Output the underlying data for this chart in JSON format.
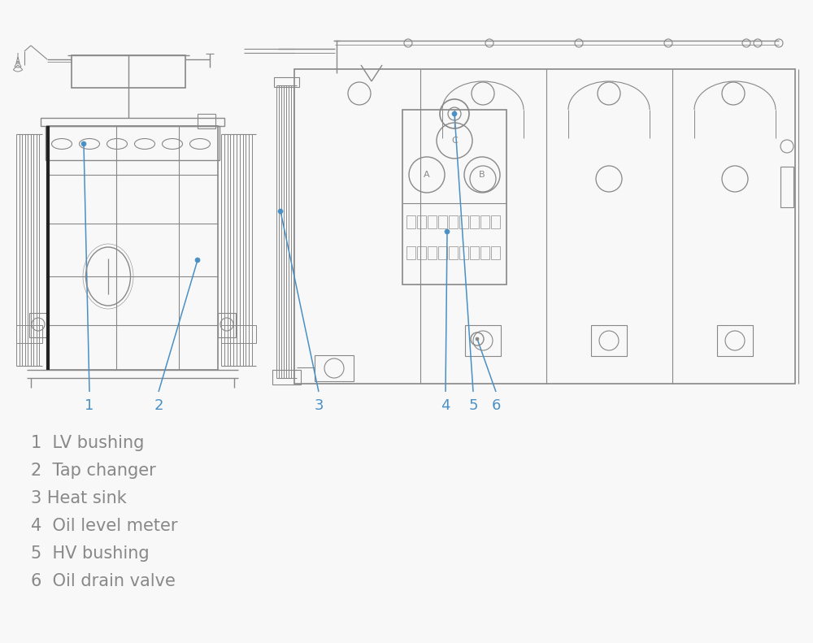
{
  "bg_color": "#f8f8f8",
  "line_color": "#888888",
  "line_color2": "#aaaaaa",
  "blue_color": "#4a90c4",
  "dark_color": "#666666",
  "black_color": "#333333",
  "legend_items": [
    {
      "num": "1",
      "text": "  LV bushing"
    },
    {
      "num": "2",
      "text": "  Tap changer"
    },
    {
      "num": "3",
      "text": " Heat sink"
    },
    {
      "num": "4",
      "text": "  Oil level meter"
    },
    {
      "num": "5",
      "text": "  HV bushing"
    },
    {
      "num": "6",
      "text": "  Oil drain valve"
    }
  ],
  "text_color": "#888888",
  "figsize": [
    10.0,
    7.91
  ],
  "dpi": 100
}
